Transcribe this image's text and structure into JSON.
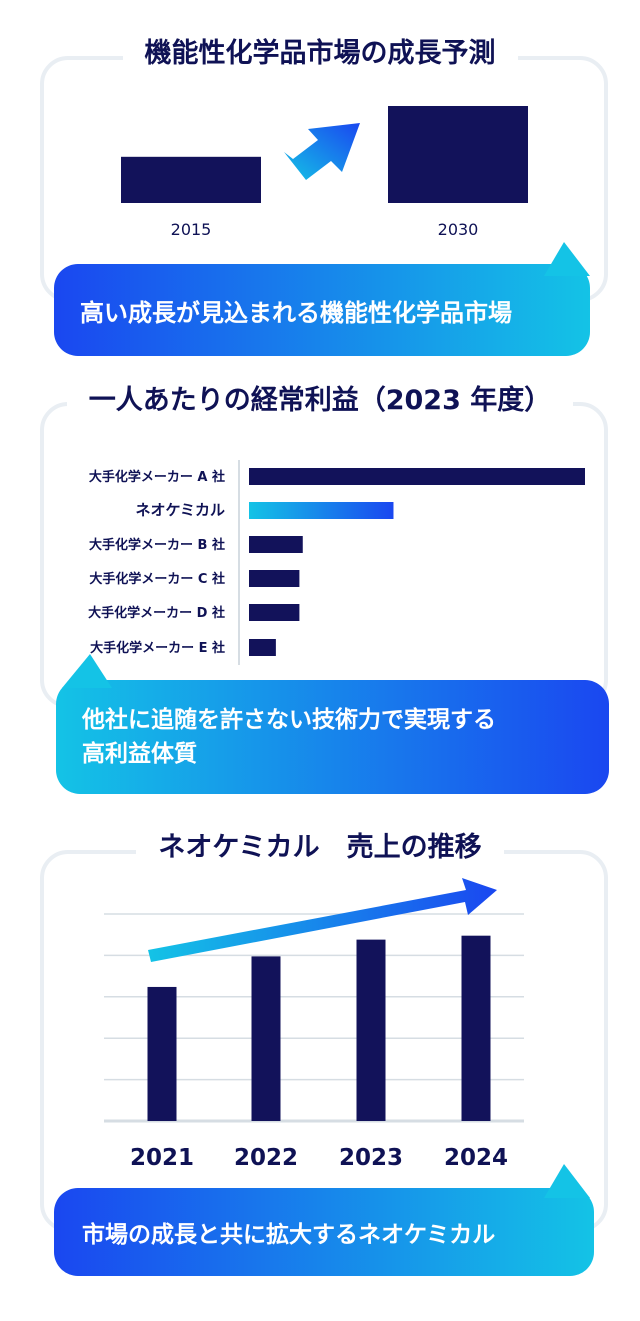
{
  "chart_data": [
    {
      "type": "bar",
      "title": "機能性化学品市場の成長予測",
      "categories": [
        "2015",
        "2030"
      ],
      "values": [
        1,
        2.1
      ],
      "yaxis_shown": false,
      "annotation": "高い成長が見込まれる機能性化学品市場"
    },
    {
      "type": "bar",
      "orientation": "horizontal",
      "title": "一人あたりの経常利益（2023 年度）",
      "categories": [
        "大手化学メーカー A 社",
        "ネオケミカル",
        "大手化学メーカー B 社",
        "大手化学メーカー C 社",
        "大手化学メーカー D 社",
        "大手化学メーカー E 社"
      ],
      "values": [
        100,
        43,
        16,
        15,
        15,
        8
      ],
      "highlight": "ネオケミカル",
      "annotation_lines": [
        "他社に追随を許さない技術力で実現する",
        "高利益体質"
      ]
    },
    {
      "type": "bar",
      "title": "ネオケミカル　売上の推移",
      "categories": [
        "2021",
        "2022",
        "2023",
        "2024"
      ],
      "values": [
        136,
        167,
        184,
        188
      ],
      "grid": true,
      "ylim": [
        0,
        210
      ],
      "annotation": "市場の成長と共に拡大するネオケミカル"
    }
  ],
  "colors": {
    "navy": "#12125a",
    "blue": "#1a47f0",
    "cyan": "#14c3e6",
    "border": "#e9eef3",
    "grid": "#d6dde3"
  },
  "icons": [
    "growth-arrow-icon",
    "trend-arrow-icon"
  ]
}
